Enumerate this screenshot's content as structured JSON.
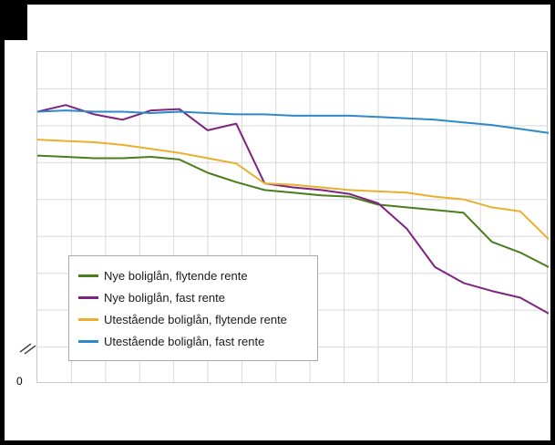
{
  "figure": {
    "y_origin_label": "0"
  },
  "chart_data": {
    "type": "line",
    "x": [
      1,
      2,
      3,
      4,
      5,
      6,
      7,
      8,
      9,
      10,
      11,
      12,
      13,
      14,
      15,
      16,
      17,
      18,
      19
    ],
    "x_tick_labels_visible": false,
    "ylim": [
      2.0,
      4.5
    ],
    "y_axis_break": true,
    "y_origin_label": "0",
    "grid": {
      "v_intervals": 15,
      "h_intervals": 9,
      "color": "#d9d9d9"
    },
    "legend_position": "lower-left",
    "series": [
      {
        "name": "Nye boliglån, flytende rente",
        "color": "#4a7d1c",
        "values": [
          3.72,
          3.71,
          3.7,
          3.7,
          3.71,
          3.69,
          3.59,
          3.52,
          3.46,
          3.44,
          3.42,
          3.41,
          3.35,
          3.33,
          3.31,
          3.29,
          3.07,
          2.99,
          2.88
        ]
      },
      {
        "name": "Nye boliglån, fast rente",
        "color": "#7d2480",
        "values": [
          4.05,
          4.1,
          4.03,
          3.99,
          4.06,
          4.07,
          3.91,
          3.96,
          3.51,
          3.48,
          3.46,
          3.43,
          3.36,
          3.17,
          2.88,
          2.76,
          2.7,
          2.65,
          2.53
        ]
      },
      {
        "name": "Utestående boliglån, flytende rente",
        "color": "#e9b02e",
        "values": [
          3.84,
          3.83,
          3.82,
          3.8,
          3.77,
          3.74,
          3.7,
          3.66,
          3.51,
          3.5,
          3.48,
          3.46,
          3.45,
          3.44,
          3.41,
          3.39,
          3.33,
          3.3,
          3.09
        ]
      },
      {
        "name": "Utestående boliglån, fast rente",
        "color": "#2d89c8",
        "values": [
          4.05,
          4.06,
          4.05,
          4.05,
          4.04,
          4.05,
          4.04,
          4.03,
          4.03,
          4.02,
          4.02,
          4.02,
          4.01,
          4.0,
          3.99,
          3.97,
          3.95,
          3.92,
          3.89
        ]
      }
    ]
  }
}
